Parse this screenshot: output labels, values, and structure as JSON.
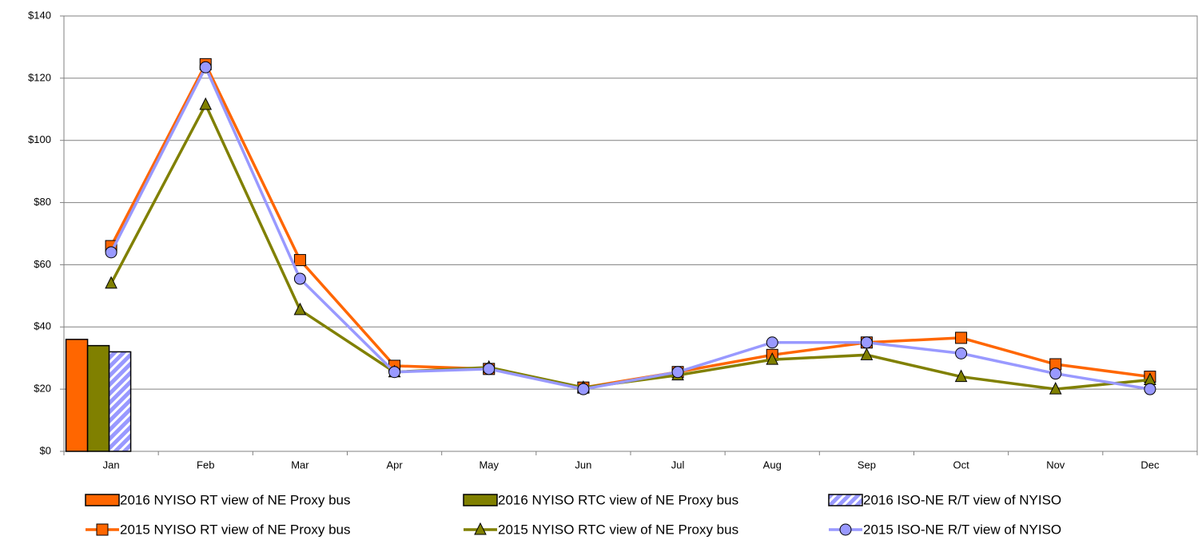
{
  "chart_data": {
    "type": "line",
    "categories": [
      "Jan",
      "Feb",
      "Mar",
      "Apr",
      "May",
      "Jun",
      "Jul",
      "Aug",
      "Sep",
      "Oct",
      "Nov",
      "Dec"
    ],
    "series": [
      {
        "name": "2016 NYISO RT view of NE Proxy bus",
        "type": "bar",
        "color": "#ff6600",
        "values": [
          36,
          null,
          null,
          null,
          null,
          null,
          null,
          null,
          null,
          null,
          null,
          null
        ]
      },
      {
        "name": "2016 NYISO RTC view of NE Proxy bus",
        "type": "bar",
        "color": "#808000",
        "values": [
          34,
          null,
          null,
          null,
          null,
          null,
          null,
          null,
          null,
          null,
          null,
          null
        ]
      },
      {
        "name": "2016 ISO-NE R/T view of NYISO",
        "type": "bar",
        "color": "#9999ff",
        "pattern": "hatch",
        "values": [
          32,
          null,
          null,
          null,
          null,
          null,
          null,
          null,
          null,
          null,
          null,
          null
        ]
      },
      {
        "name": "2015 NYISO RT view of NE Proxy bus",
        "type": "line",
        "marker": "square",
        "color": "#ff6600",
        "values": [
          66,
          124.5,
          61.5,
          27.5,
          26.5,
          20.5,
          25.5,
          31,
          35,
          36.5,
          28,
          24
        ]
      },
      {
        "name": "2015 NYISO RTC view of NE Proxy bus",
        "type": "line",
        "marker": "triangle",
        "color": "#808000",
        "values": [
          54,
          111.5,
          45.5,
          25.5,
          27,
          20.5,
          24.5,
          29.5,
          31,
          24,
          20,
          23
        ]
      },
      {
        "name": "2015 ISO-NE R/T view of NYISO",
        "type": "line",
        "marker": "circle",
        "color": "#9999ff",
        "values": [
          64,
          123.5,
          55.5,
          25.5,
          26.5,
          20,
          25.5,
          35,
          35,
          31.5,
          25,
          20
        ]
      }
    ],
    "ylim": [
      0,
      140
    ],
    "yticks": [
      {
        "value": 0,
        "label": "$0"
      },
      {
        "value": 20,
        "label": "$20"
      },
      {
        "value": 40,
        "label": "$40"
      },
      {
        "value": 60,
        "label": "$60"
      },
      {
        "value": 80,
        "label": "$80"
      },
      {
        "value": 100,
        "label": "$100"
      },
      {
        "value": 120,
        "label": "$120"
      },
      {
        "value": 140,
        "label": "$140"
      }
    ],
    "grid": true
  }
}
